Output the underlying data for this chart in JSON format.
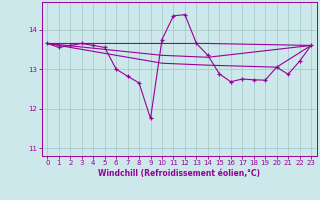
{
  "xlabel": "Windchill (Refroidissement éolien,°C)",
  "xlim": [
    -0.5,
    23.5
  ],
  "ylim": [
    10.8,
    14.7
  ],
  "yticks": [
    11,
    12,
    13,
    14
  ],
  "xticks": [
    0,
    1,
    2,
    3,
    4,
    5,
    6,
    7,
    8,
    9,
    10,
    11,
    12,
    13,
    14,
    15,
    16,
    17,
    18,
    19,
    20,
    21,
    22,
    23
  ],
  "bg_color": "#cce8ea",
  "line_color": "#990099",
  "grid_color": "#aacccc",
  "series1_x": [
    0,
    1,
    2,
    3,
    4,
    5,
    6,
    7,
    8,
    9,
    10,
    11,
    12,
    13,
    14,
    15,
    16,
    17,
    18,
    19,
    20,
    21,
    22,
    23
  ],
  "series1_y": [
    13.65,
    13.55,
    13.6,
    13.65,
    13.6,
    13.55,
    13.0,
    12.82,
    12.65,
    11.75,
    13.75,
    14.35,
    14.38,
    13.65,
    13.35,
    12.88,
    12.68,
    12.75,
    12.73,
    12.72,
    13.05,
    12.87,
    13.2,
    13.6
  ],
  "series2_x": [
    0,
    14,
    23
  ],
  "series2_y": [
    13.65,
    13.65,
    13.6
  ],
  "series3_x": [
    0,
    10,
    14,
    23
  ],
  "series3_y": [
    13.65,
    13.35,
    13.3,
    13.6
  ],
  "series4_x": [
    0,
    10,
    14,
    20,
    23
  ],
  "series4_y": [
    13.65,
    13.15,
    13.1,
    13.05,
    13.6
  ]
}
